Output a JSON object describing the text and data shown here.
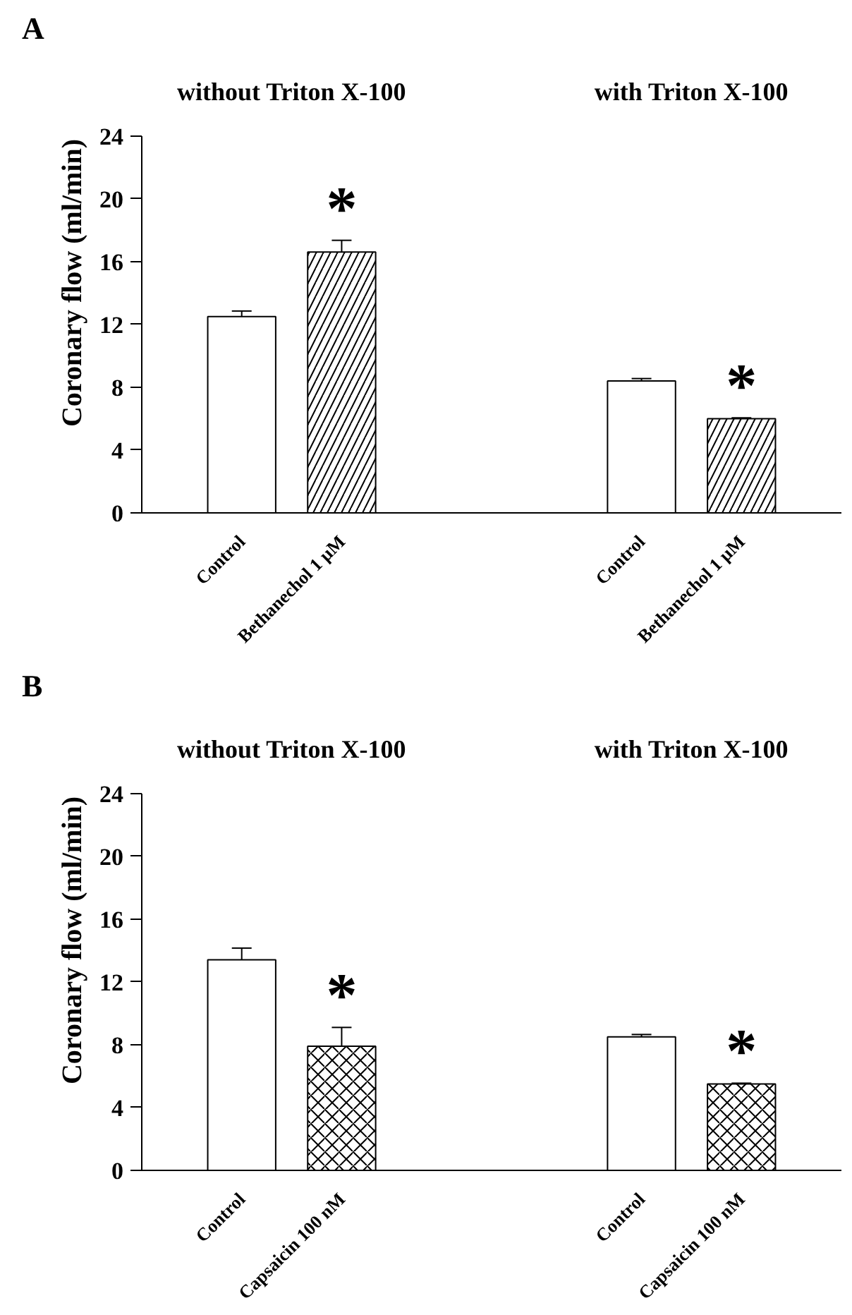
{
  "chart_data": [
    {
      "type": "bar",
      "title": "A",
      "ylabel": "Coronary flow (ml/min)",
      "categories": [
        "Control",
        "Bethanechol 1 μM",
        null,
        null,
        "Control",
        "Bethanechol 1 μM"
      ],
      "series": [
        {
          "color": "#ffffff",
          "values": [
            12.5,
            null,
            null,
            null,
            8.4,
            null
          ],
          "errors": [
            0.35,
            null,
            null,
            null,
            0.15,
            null
          ]
        },
        {
          "color": "#ffffff",
          "values": [
            null,
            16.6,
            null,
            null,
            null,
            6.0
          ],
          "errors": [
            null,
            0.75,
            null,
            null,
            null,
            0.05
          ]
        }
      ],
      "ylim": [
        0,
        24
      ],
      "yticks": [
        0,
        4,
        8,
        12,
        16,
        20,
        24
      ],
      "grid": false,
      "annotations": [
        "without Triton X-100",
        "with Triton X-100",
        "*",
        "*"
      ]
    },
    {
      "type": "bar",
      "title": "B",
      "ylabel": "Coronary flow (ml/min)",
      "categories": [
        "Control",
        "Capsaicin 100 nM",
        null,
        null,
        "Control",
        "Capsaicin 100 nM"
      ],
      "series": [
        {
          "color": "#ffffff",
          "values": [
            13.4,
            null,
            null,
            null,
            8.5,
            null
          ],
          "errors": [
            0.75,
            null,
            null,
            null,
            0.15,
            null
          ]
        },
        {
          "color": "#ffffff",
          "values": [
            null,
            7.9,
            null,
            null,
            null,
            5.5
          ],
          "errors": [
            null,
            1.2,
            null,
            null,
            null,
            0.05
          ]
        }
      ],
      "ylim": [
        0,
        24
      ],
      "yticks": [
        0,
        4,
        8,
        12,
        16,
        20,
        24
      ],
      "grid": false,
      "annotations": [
        "without Triton X-100",
        "with Triton X-100",
        "*",
        "*"
      ]
    }
  ]
}
